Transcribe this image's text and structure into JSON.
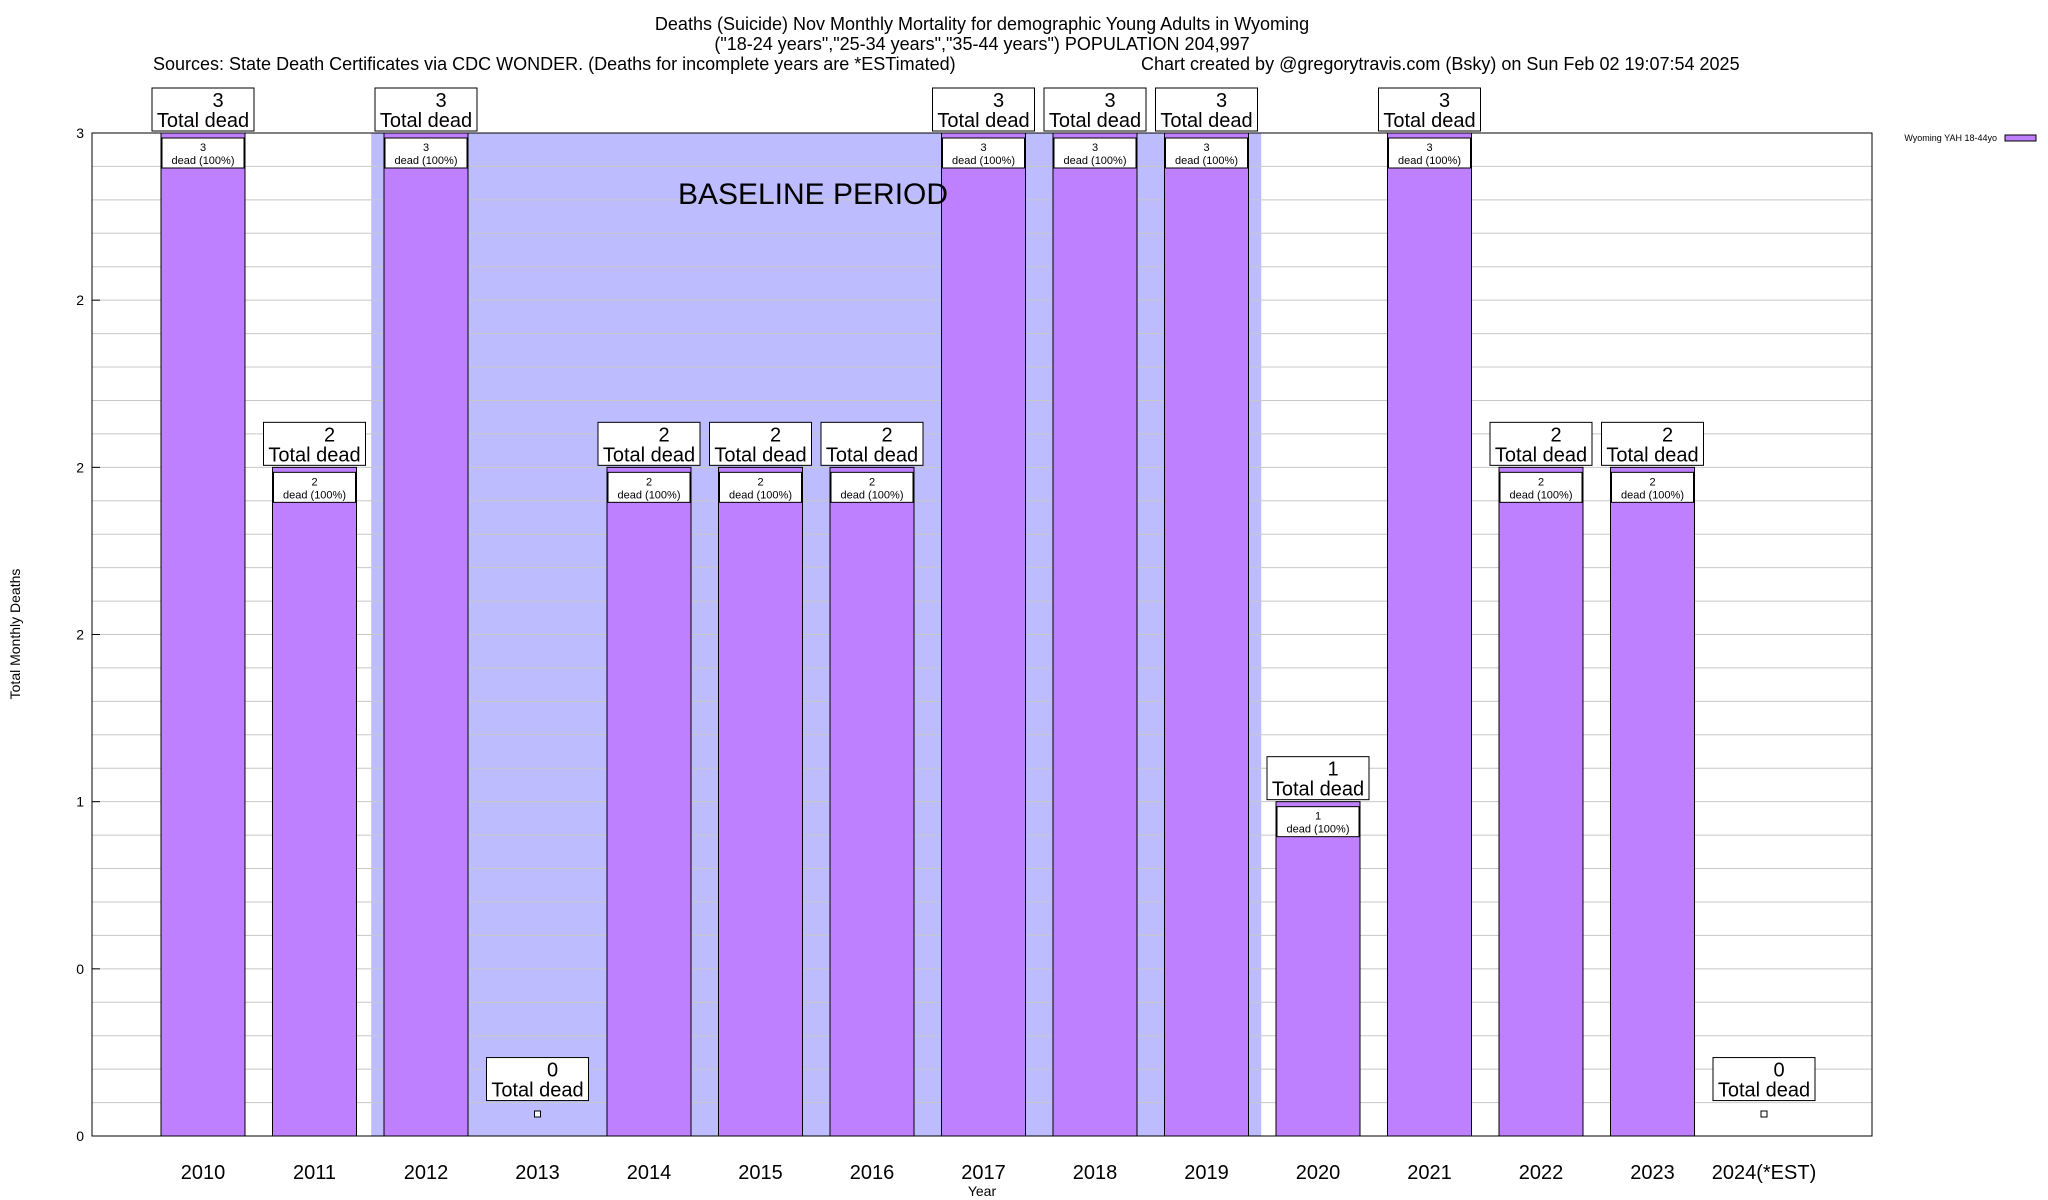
{
  "chart_data": {
    "type": "bar",
    "title": "Deaths (Suicide) Nov Monthly Mortality for demographic Young Adults in Wyoming",
    "subtitle": "(\"18-24 years\",\"25-34 years\",\"35-44 years\") POPULATION 204,997",
    "sources": "Sources: State Death Certificates via CDC WONDER. (Deaths for incomplete years are *ESTimated)",
    "credit": "Chart created by @gregorytravis.com (Bsky) on Sun Feb 02 19:07:54 2025",
    "xlabel": "Year",
    "ylabel": "Total Monthly Deaths",
    "ylim": [
      0,
      3
    ],
    "y_ticks": [
      "0",
      "0",
      "1",
      "2",
      "2",
      "2",
      "3"
    ],
    "grid": true,
    "legend": {
      "label": "Wyoming YAH 18-44yo",
      "color": "#bf80ff",
      "placement": "top-right"
    },
    "baseline": {
      "label": "BASELINE PERIOD",
      "from": "2012",
      "to": "2019",
      "color": "#bcbcff"
    },
    "bar_color": "#bf80ff",
    "categories": [
      "2010",
      "2011",
      "2012",
      "2013",
      "2014",
      "2015",
      "2016",
      "2017",
      "2018",
      "2019",
      "2020",
      "2021",
      "2022",
      "2023",
      "2024(*EST)"
    ],
    "values": [
      3,
      2,
      3,
      0,
      2,
      2,
      2,
      3,
      3,
      3,
      1,
      3,
      2,
      2,
      0
    ],
    "total_label_suffix": "Total dead",
    "inner_label_suffix": "dead (100%)"
  }
}
